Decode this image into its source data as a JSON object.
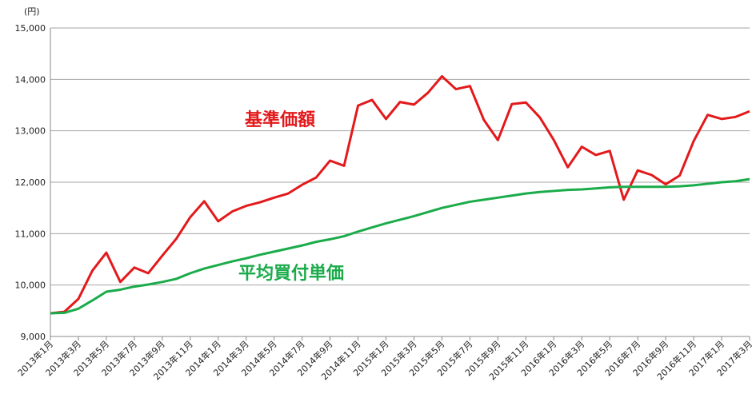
{
  "chart_data": {
    "type": "line",
    "y_label": "(円)",
    "categories": [
      "2013年1月",
      null,
      "2013年3月",
      null,
      "2013年5月",
      null,
      "2013年7月",
      null,
      "2013年9月",
      null,
      "2013年11月",
      null,
      "2014年1月",
      null,
      "2014年3月",
      null,
      "2014年5月",
      null,
      "2014年7月",
      null,
      "2014年9月",
      null,
      "2014年11月",
      null,
      "2015年1月",
      null,
      "2015年3月",
      null,
      "2015年5月",
      null,
      "2015年7月",
      null,
      "2015年9月",
      null,
      "2015年11月",
      null,
      "2016年1月",
      null,
      "2016年3月",
      null,
      "2016年5月",
      null,
      "2016年7月",
      null,
      "2016年9月",
      null,
      "2016年11月",
      null,
      "2017年1月",
      null,
      "2017年3月"
    ],
    "series": [
      {
        "name": "基準価額",
        "color": "#e3191b",
        "values": [
          9450,
          9480,
          9730,
          10280,
          10630,
          10060,
          10340,
          10230,
          10570,
          10900,
          11320,
          11630,
          11240,
          11430,
          11540,
          11610,
          11700,
          11780,
          11950,
          12090,
          12420,
          12320,
          13490,
          13600,
          13230,
          13560,
          13510,
          13740,
          14060,
          13810,
          13870,
          13210,
          12820,
          13520,
          13550,
          13260,
          12820,
          12290,
          12690,
          12530,
          12610,
          11660,
          12230,
          12140,
          11960,
          12130,
          12800,
          13310,
          13230,
          13270,
          13380
        ]
      },
      {
        "name": "平均買付単価",
        "color": "#1aab4a",
        "values": [
          9450,
          9460,
          9540,
          9700,
          9870,
          9910,
          9970,
          10010,
          10060,
          10120,
          10230,
          10320,
          10390,
          10460,
          10520,
          10590,
          10650,
          10710,
          10770,
          10840,
          10890,
          10950,
          11040,
          11120,
          11200,
          11270,
          11340,
          11420,
          11500,
          11560,
          11620,
          11660,
          11700,
          11740,
          11780,
          11810,
          11830,
          11850,
          11860,
          11880,
          11900,
          11910,
          11910,
          11910,
          11910,
          11920,
          11940,
          11970,
          12000,
          12020,
          12060
        ]
      }
    ],
    "ylim": [
      9000,
      15000
    ],
    "yticks": [
      {
        "value": 9000,
        "label": "9,000"
      },
      {
        "value": 10000,
        "label": "10,000"
      },
      {
        "value": 11000,
        "label": "11,000"
      },
      {
        "value": 12000,
        "label": "12,000"
      },
      {
        "value": 13000,
        "label": "13,000"
      },
      {
        "value": 14000,
        "label": "14,000"
      },
      {
        "value": 15000,
        "label": "15,000"
      }
    ],
    "grid": true
  }
}
